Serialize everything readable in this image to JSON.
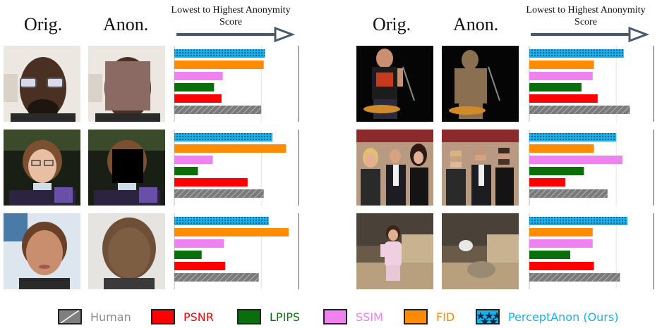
{
  "headers": {
    "left": {
      "orig": "Orig.",
      "anon": "Anon.",
      "caption": "Lowest to Highest Anonymity Score"
    },
    "right": {
      "orig": "Orig.",
      "anon": "Anon.",
      "caption": "Lowest to Highest Anonymity Score"
    }
  },
  "colors": {
    "Human": "#7f7f7f",
    "PSNR": "#ff0000",
    "LPIPS": "#0a6e0a",
    "SSIM": "#ee82ee",
    "FID": "#ff8c00",
    "PerceptAnon (Ours)": "#1ab0e8"
  },
  "legend": [
    {
      "name": "Human",
      "text_color": "#8c8c8c"
    },
    {
      "name": "PSNR",
      "text_color": "#ff0000"
    },
    {
      "name": "LPIPS",
      "text_color": "#0a6e0a"
    },
    {
      "name": "SSIM",
      "text_color": "#ee82ee"
    },
    {
      "name": "FID",
      "text_color": "#ff8c00"
    },
    {
      "name": "PerceptAnon (Ours)",
      "text_color": "#1ab0e8"
    }
  ],
  "chart_data": [
    {
      "type": "bar",
      "orientation": "horizontal",
      "xlim": [
        0,
        1
      ],
      "categories": [
        "PerceptAnon (Ours)",
        "FID",
        "SSIM",
        "LPIPS",
        "PSNR",
        "Human"
      ],
      "values": [
        0.73,
        0.72,
        0.39,
        0.32,
        0.38,
        0.7
      ]
    },
    {
      "type": "bar",
      "orientation": "horizontal",
      "xlim": [
        0,
        1
      ],
      "categories": [
        "PerceptAnon (Ours)",
        "FID",
        "SSIM",
        "LPIPS",
        "PSNR",
        "Human"
      ],
      "values": [
        0.76,
        0.52,
        0.51,
        0.42,
        0.55,
        0.81
      ]
    },
    {
      "type": "bar",
      "orientation": "horizontal",
      "xlim": [
        0,
        1
      ],
      "categories": [
        "PerceptAnon (Ours)",
        "FID",
        "SSIM",
        "LPIPS",
        "PSNR",
        "Human"
      ],
      "values": [
        0.79,
        0.9,
        0.31,
        0.19,
        0.59,
        0.72
      ]
    },
    {
      "type": "bar",
      "orientation": "horizontal",
      "xlim": [
        0,
        1
      ],
      "categories": [
        "PerceptAnon (Ours)",
        "FID",
        "SSIM",
        "LPIPS",
        "PSNR",
        "Human"
      ],
      "values": [
        0.7,
        0.52,
        0.75,
        0.44,
        0.29,
        0.63
      ]
    },
    {
      "type": "bar",
      "orientation": "horizontal",
      "xlim": [
        0,
        1
      ],
      "categories": [
        "PerceptAnon (Ours)",
        "FID",
        "SSIM",
        "LPIPS",
        "PSNR",
        "Human"
      ],
      "values": [
        0.76,
        0.92,
        0.4,
        0.22,
        0.41,
        0.68
      ]
    },
    {
      "type": "bar",
      "orientation": "horizontal",
      "xlim": [
        0,
        1
      ],
      "categories": [
        "PerceptAnon (Ours)",
        "FID",
        "SSIM",
        "LPIPS",
        "PSNR",
        "Human"
      ],
      "values": [
        0.79,
        0.51,
        0.51,
        0.33,
        0.52,
        0.73
      ]
    }
  ]
}
